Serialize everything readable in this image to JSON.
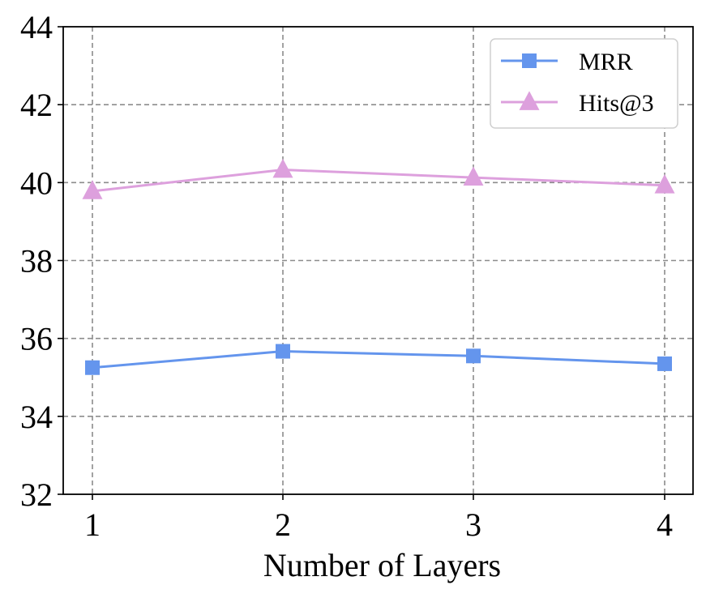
{
  "chart_data": {
    "type": "line",
    "x": [
      1,
      2,
      3,
      4
    ],
    "x_tick_labels": [
      "1",
      "2",
      "3",
      "4"
    ],
    "xlabel": "Number of Layers",
    "ylabel": "",
    "title": "",
    "ylim": [
      32,
      44
    ],
    "y_ticks": [
      32,
      34,
      36,
      38,
      40,
      42,
      44
    ],
    "y_tick_labels": [
      "32",
      "34",
      "36",
      "38",
      "40",
      "42",
      "44"
    ],
    "grid": true,
    "legend_position": "top-right",
    "series": [
      {
        "name": "MRR",
        "values": [
          35.25,
          35.67,
          35.55,
          35.35
        ],
        "color": "#6495ED",
        "marker": "square"
      },
      {
        "name": "Hits@3",
        "values": [
          39.78,
          40.33,
          40.13,
          39.93
        ],
        "color": "#DDA0DD",
        "marker": "triangle"
      }
    ]
  }
}
